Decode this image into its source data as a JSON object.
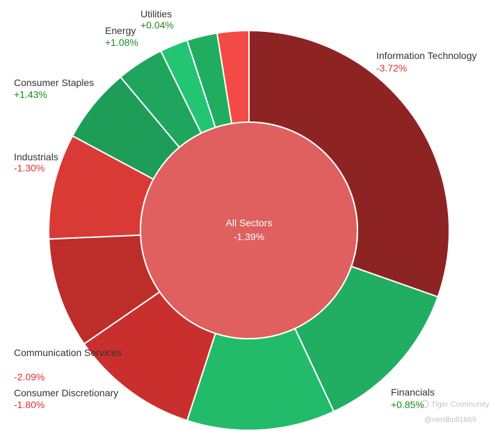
{
  "chart_data": {
    "type": "pie",
    "center": {
      "name": "All Sectors",
      "change": "-1.39%",
      "color": "#df605e"
    },
    "slices": [
      {
        "name": "Information Technology",
        "change": "-3.72%",
        "share": 31.0,
        "color": "#8e2323"
      },
      {
        "name": "Financials",
        "change": "+0.85%",
        "share": 12.9,
        "color": "#21ae62"
      },
      {
        "name": "",
        "change": "",
        "share": 12.2,
        "color": "#22bb6a"
      },
      {
        "name": "Consumer Discretionary",
        "change": "-1.80%",
        "share": 10.6,
        "color": "#c9302d"
      },
      {
        "name": "Communication Services",
        "change": "-2.09%",
        "share": 9.1,
        "color": "#bd2d2a"
      },
      {
        "name": "Industrials",
        "change": "-1.30%",
        "share": 8.7,
        "color": "#d93a36"
      },
      {
        "name": "Consumer Staples",
        "change": "+1.43%",
        "share": 6.2,
        "color": "#1e9d58"
      },
      {
        "name": "Energy",
        "change": "+1.08%",
        "share": 3.9,
        "color": "#1fa55d"
      },
      {
        "name": "",
        "change": "",
        "share": 2.3,
        "color": "#24c572"
      },
      {
        "name": "Utilities",
        "change": "+0.04%",
        "share": 2.5,
        "color": "#20ad60"
      },
      {
        "name": "",
        "change": "",
        "share": 2.6,
        "color": "#f44a45"
      }
    ]
  },
  "watermark": {
    "brand": "Tiger Community",
    "handle": "@nerdbull1669"
  }
}
